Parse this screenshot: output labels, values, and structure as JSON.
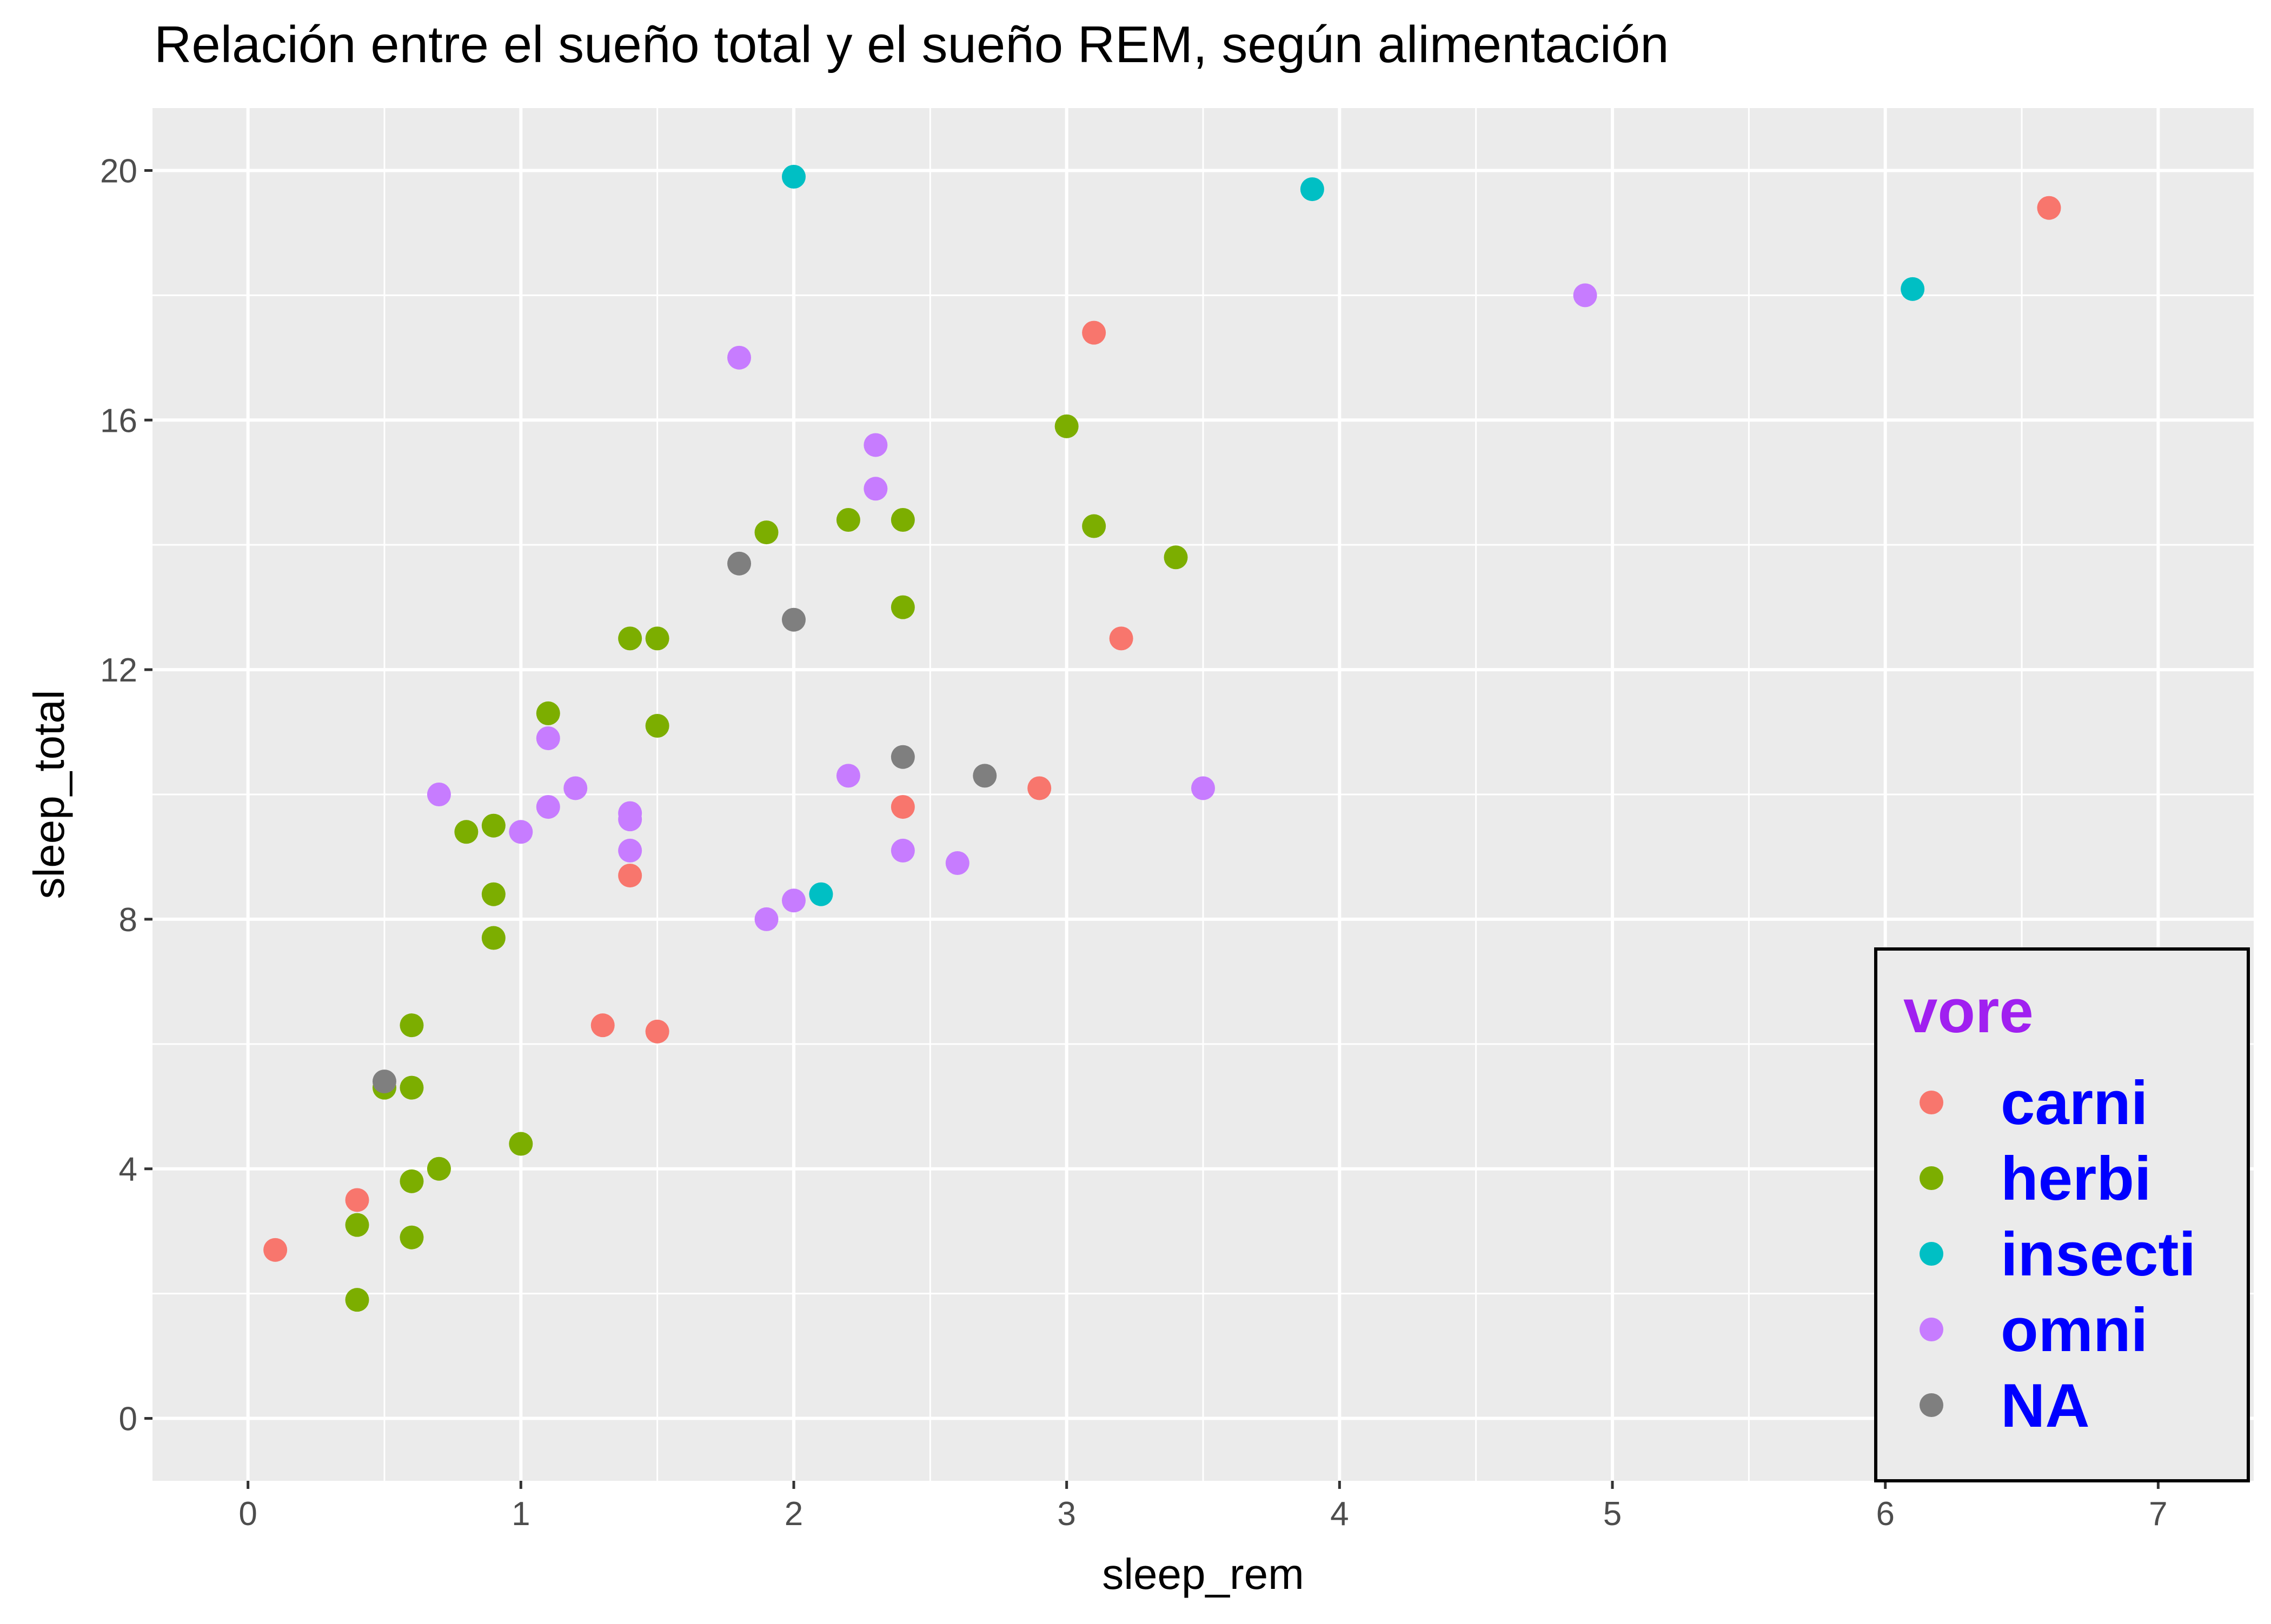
{
  "chart_data": {
    "type": "scatter",
    "title": "Relación entre el sueño total y el sueño REM, según alimentación",
    "xlabel": "sleep_rem",
    "ylabel": "sleep_total",
    "xlim": [
      -0.35,
      7.35
    ],
    "ylim": [
      -1,
      21
    ],
    "x_ticks": [
      "0",
      "1",
      "2",
      "3",
      "4",
      "5",
      "6",
      "7"
    ],
    "y_ticks": [
      "0",
      "4",
      "8",
      "12",
      "16",
      "20"
    ],
    "grid": true,
    "panel_background": "#ebebeb",
    "legend": {
      "title": "vore",
      "title_color": "#a020f0",
      "label_color": "#0000ff",
      "placement": "bottom-right inside"
    },
    "series": [
      {
        "name": "carni",
        "color": "#f8766d",
        "points": [
          [
            0.1,
            2.7
          ],
          [
            0.4,
            3.5
          ],
          [
            1.3,
            6.3
          ],
          [
            1.4,
            8.7
          ],
          [
            1.5,
            6.2
          ],
          [
            2.4,
            9.8
          ],
          [
            2.9,
            10.1
          ],
          [
            3.1,
            17.4
          ],
          [
            3.2,
            12.5
          ],
          [
            6.6,
            19.4
          ]
        ]
      },
      {
        "name": "herbi",
        "color": "#7cae00",
        "points": [
          [
            0.4,
            1.9
          ],
          [
            0.4,
            3.1
          ],
          [
            0.5,
            5.3
          ],
          [
            0.6,
            2.9
          ],
          [
            0.6,
            3.8
          ],
          [
            0.6,
            5.3
          ],
          [
            0.6,
            6.3
          ],
          [
            0.7,
            4.0
          ],
          [
            0.8,
            9.4
          ],
          [
            0.9,
            7.7
          ],
          [
            0.9,
            8.4
          ],
          [
            0.9,
            9.5
          ],
          [
            1.0,
            4.4
          ],
          [
            1.1,
            11.3
          ],
          [
            1.4,
            12.5
          ],
          [
            1.5,
            12.5
          ],
          [
            1.5,
            11.1
          ],
          [
            1.9,
            14.2
          ],
          [
            2.2,
            14.4
          ],
          [
            2.4,
            14.4
          ],
          [
            2.4,
            13.0
          ],
          [
            3.0,
            15.9
          ],
          [
            3.1,
            14.3
          ],
          [
            3.4,
            13.8
          ]
        ]
      },
      {
        "name": "insecti",
        "color": "#00bfc4",
        "points": [
          [
            2.0,
            19.9
          ],
          [
            2.1,
            8.4
          ],
          [
            3.9,
            19.7
          ],
          [
            6.1,
            18.1
          ]
        ]
      },
      {
        "name": "omni",
        "color": "#c77cff",
        "points": [
          [
            0.7,
            10.0
          ],
          [
            1.0,
            9.4
          ],
          [
            1.1,
            10.9
          ],
          [
            1.1,
            9.8
          ],
          [
            1.2,
            10.1
          ],
          [
            1.4,
            9.7
          ],
          [
            1.4,
            9.6
          ],
          [
            1.4,
            9.1
          ],
          [
            1.8,
            17.0
          ],
          [
            1.9,
            8.0
          ],
          [
            2.0,
            8.3
          ],
          [
            2.2,
            10.3
          ],
          [
            2.3,
            15.6
          ],
          [
            2.3,
            14.9
          ],
          [
            2.4,
            9.1
          ],
          [
            2.6,
            8.9
          ],
          [
            3.5,
            10.1
          ],
          [
            4.9,
            18.0
          ]
        ]
      },
      {
        "name": "NA",
        "color": "#7f7f7f",
        "points": [
          [
            0.5,
            5.4
          ],
          [
            1.8,
            13.7
          ],
          [
            2.0,
            12.8
          ],
          [
            2.4,
            10.6
          ],
          [
            2.7,
            10.3
          ]
        ]
      }
    ]
  }
}
